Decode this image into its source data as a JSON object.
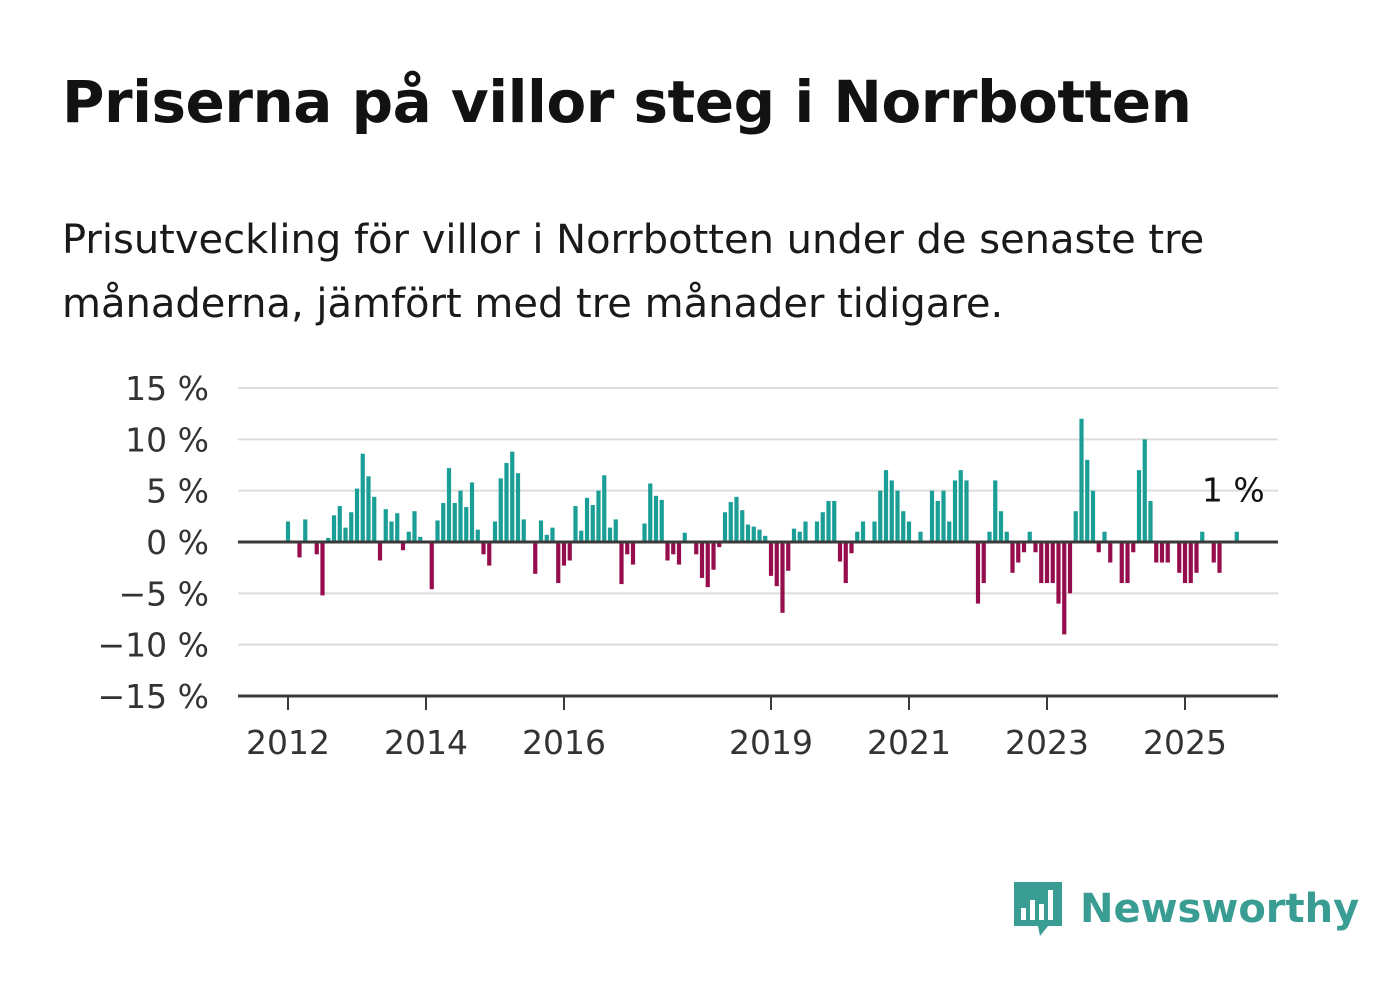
{
  "header": {
    "title": "Priserna på villor steg i Norrbotten",
    "subtitle": "Prisutveckling för villor i Norrbotten under de senaste tre månaderna, jämfört med tre månader tidigare."
  },
  "brand": {
    "name": "Newsworthy",
    "icon": "newsworthy-logo-icon",
    "color": "#3a9d94"
  },
  "chart_data": {
    "type": "bar",
    "title": "Priserna på villor steg i Norrbotten",
    "xlabel": "",
    "ylabel": "",
    "ylim": [
      -15,
      15
    ],
    "yticks": [
      "15 %",
      "10 %",
      "5 %",
      "0 %",
      "−5 %",
      "−10 %",
      "−15 %"
    ],
    "ytick_values": [
      15,
      10,
      5,
      0,
      -5,
      -10,
      -15
    ],
    "xticks": [
      "2012",
      "2014",
      "2016",
      "2019",
      "2021",
      "2023",
      "2025"
    ],
    "xtick_years": [
      2012,
      2014,
      2016,
      2019,
      2021,
      2023,
      2025
    ],
    "grid": true,
    "start": "2012-01",
    "end": "2025-08",
    "colors": {
      "positive": "#1a9e96",
      "negative": "#950d4d"
    },
    "annotation": {
      "text": "1 %",
      "value": 1
    },
    "values": [
      2,
      0,
      -1.5,
      2.2,
      0,
      -1.2,
      -5.2,
      0.4,
      2.6,
      3.5,
      1.4,
      2.9,
      5.2,
      8.6,
      6.4,
      4.4,
      -1.8,
      3.2,
      2,
      2.8,
      -0.8,
      1,
      3,
      0.5,
      0,
      -4.6,
      2.1,
      3.8,
      7.2,
      3.8,
      5,
      3.4,
      5.8,
      1.2,
      -1.2,
      -2.3,
      2,
      6.2,
      7.7,
      8.8,
      6.7,
      2.2,
      0,
      -3.1,
      2.1,
      0.7,
      1.4,
      -4,
      -2.3,
      -1.8,
      3.5,
      1.1,
      4.3,
      3.6,
      5,
      6.5,
      1.4,
      2.2,
      -4.1,
      -1.2,
      -2.2,
      0,
      1.8,
      5.7,
      4.5,
      4.1,
      -1.8,
      -1.2,
      -2.2,
      0.9,
      0,
      -1.2,
      -3.5,
      -4.4,
      -2.7,
      -0.5,
      2.9,
      3.9,
      4.4,
      3.1,
      1.7,
      1.5,
      1.2,
      0.6,
      -3.3,
      -4.3,
      -6.9,
      -2.8,
      1.3,
      1,
      2,
      0,
      2,
      2.9,
      4,
      4,
      -1.9,
      -4,
      -1.1,
      1,
      2,
      0,
      2,
      5,
      7,
      6,
      5,
      3,
      2,
      0,
      1,
      0,
      5,
      4,
      5,
      2,
      6,
      7,
      6,
      0,
      -6,
      -4,
      1,
      6,
      3,
      1,
      -3,
      -2,
      -1,
      1,
      -1,
      -4,
      -4,
      -4,
      -6,
      -9,
      -5,
      3,
      12,
      8,
      5,
      -1,
      1,
      -2,
      0,
      -4,
      -4,
      -1,
      7,
      10,
      4,
      -2,
      -2,
      -2,
      0,
      -3,
      -4,
      -4,
      -3,
      1,
      0,
      -2,
      -3,
      0,
      0,
      1
    ]
  }
}
